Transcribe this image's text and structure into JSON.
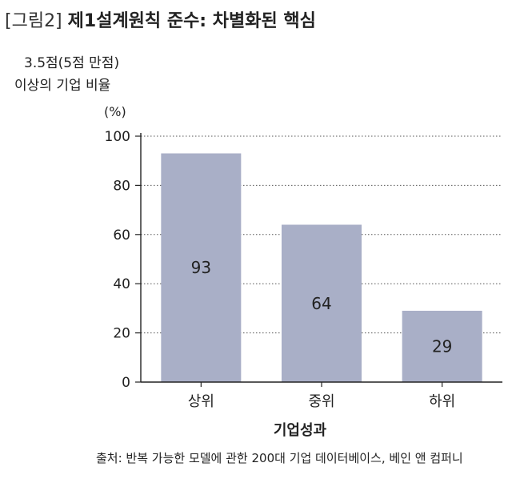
{
  "title": {
    "prefix": "[그림2]",
    "main": "제1설계원칙 준수: 차별화된 핵심"
  },
  "source": "출처: 반복 가능한 모델에 관한 200대 기업 데이터베이스, 베인 앤 컴퍼니",
  "chart_data": {
    "type": "bar",
    "ylabel_lines": [
      "3.5점(5점 만점)",
      "이상의 기업 비율"
    ],
    "unit": "(%)",
    "xlabel": "기업성과",
    "categories": [
      "상위",
      "중위",
      "하위"
    ],
    "values": [
      93,
      64,
      29
    ],
    "value_labels": [
      "93",
      "64",
      "29"
    ],
    "ylim": [
      0,
      100
    ],
    "yticks": [
      0,
      20,
      40,
      60,
      80,
      100
    ],
    "ytick_labels": [
      "0",
      "20",
      "40",
      "60",
      "80",
      "100"
    ],
    "grid": "horizontal-dotted",
    "bar_color": "#a9afc7"
  }
}
